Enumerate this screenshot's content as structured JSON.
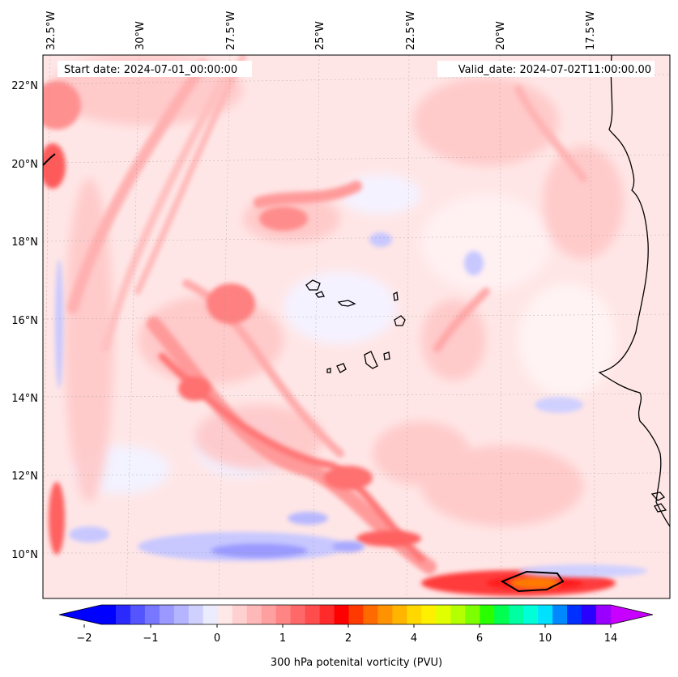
{
  "map": {
    "start_date_label": "Start date: 2024-07-01_00:00:00",
    "valid_date_label": "Valid_date: 2024-07-02T11:00:00.00",
    "top_longitude_labels": [
      "32.5°W",
      "30°W",
      "27.5°W",
      "25°W",
      "22.5°W",
      "20°W",
      "17.5°W"
    ],
    "left_latitude_labels": [
      "22°N",
      "20°N",
      "18°N",
      "16°N",
      "14°N",
      "12°N",
      "10°N"
    ],
    "field": "300 hPa potential vorticity",
    "region": "Eastern tropical Atlantic incl. Cape Verde islands and West African coast"
  },
  "colorbar": {
    "label": "300 hPa potenital vorticity (PVU)",
    "tick_labels": [
      "−2",
      "−1",
      "0",
      "1",
      "2",
      "4",
      "6",
      "10",
      "14"
    ],
    "colors": [
      "#0000ff",
      "#2a2aff",
      "#5555ff",
      "#7777ff",
      "#9999ff",
      "#b4b4ff",
      "#d0d0ff",
      "#ececff",
      "#ffe8e8",
      "#ffd0d0",
      "#ffb8b8",
      "#ffa0a0",
      "#ff8484",
      "#ff6868",
      "#ff4c4c",
      "#ff2a2a",
      "#ff0000",
      "#ff3a00",
      "#ff6a00",
      "#ff9200",
      "#ffb400",
      "#ffd800",
      "#fff000",
      "#e2ff00",
      "#b4ff00",
      "#7cff00",
      "#2aff00",
      "#00ff50",
      "#00ffa0",
      "#00ffd8",
      "#00e0ff",
      "#0088ff",
      "#0030ff",
      "#2a00ff",
      "#9a00ff"
    ],
    "under_color": "#0000ff",
    "over_color": "#c800ff"
  }
}
